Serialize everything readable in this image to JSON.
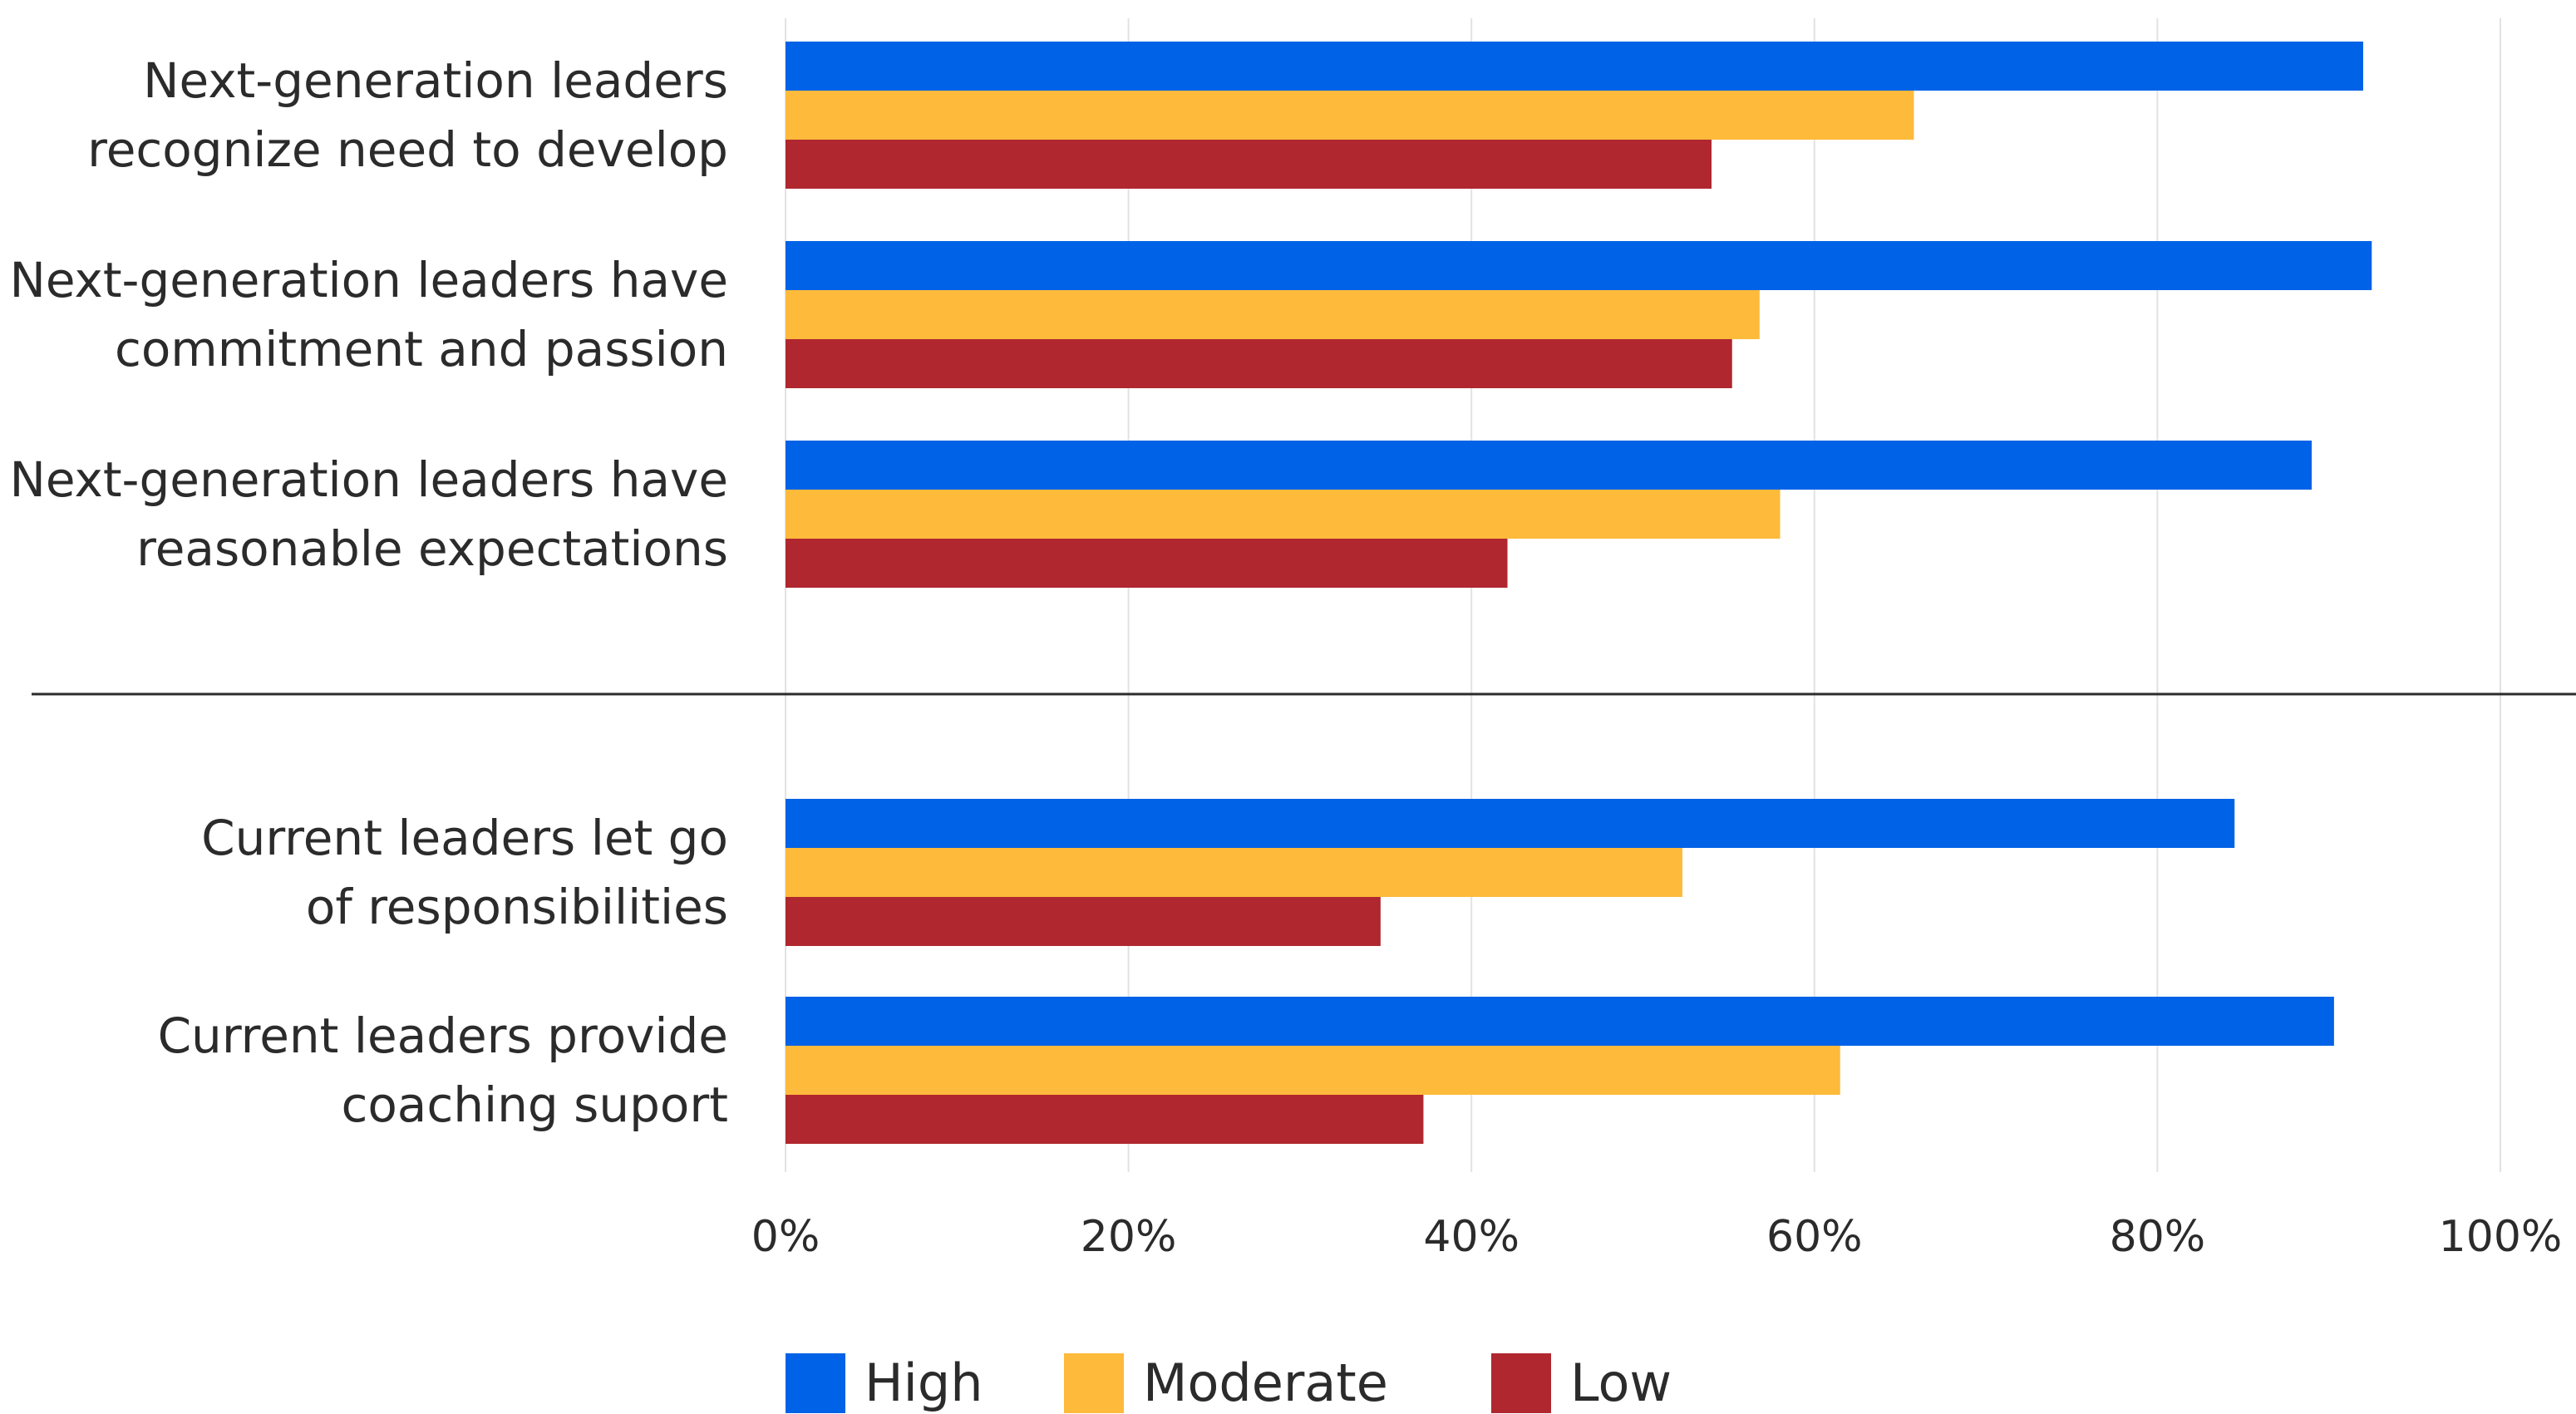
{
  "chart_data": {
    "type": "bar",
    "orientation": "horizontal",
    "title": "",
    "xlabel": "",
    "ylabel": "",
    "xlim": [
      0,
      100
    ],
    "x_ticks": [
      "0%",
      "20%",
      "40%",
      "60%",
      "80%",
      "100%"
    ],
    "grid": true,
    "legend_position": "bottom",
    "categories": [
      [
        "Next-generation leaders",
        "recognize need to develop"
      ],
      [
        "Next-generation leaders have",
        "commitment and passion"
      ],
      [
        "Next-generation leaders have",
        "reasonable expectations"
      ],
      [
        "Current leaders let go",
        "of responsibilities"
      ],
      [
        "Current leaders provide",
        "coaching suport"
      ]
    ],
    "groups": [
      {
        "categories": [
          0,
          1,
          2
        ]
      },
      {
        "categories": [
          3,
          4
        ]
      }
    ],
    "series": [
      {
        "name": "High",
        "color": "#0062E6",
        "values": [
          92,
          92.5,
          89,
          84.5,
          90.3
        ]
      },
      {
        "name": "Moderate",
        "color": "#FDBA3B",
        "values": [
          65.8,
          56.8,
          58,
          52.3,
          61.5
        ]
      },
      {
        "name": "Low",
        "color": "#B0272F",
        "values": [
          54,
          55.2,
          42.1,
          34.7,
          37.2
        ]
      }
    ]
  }
}
